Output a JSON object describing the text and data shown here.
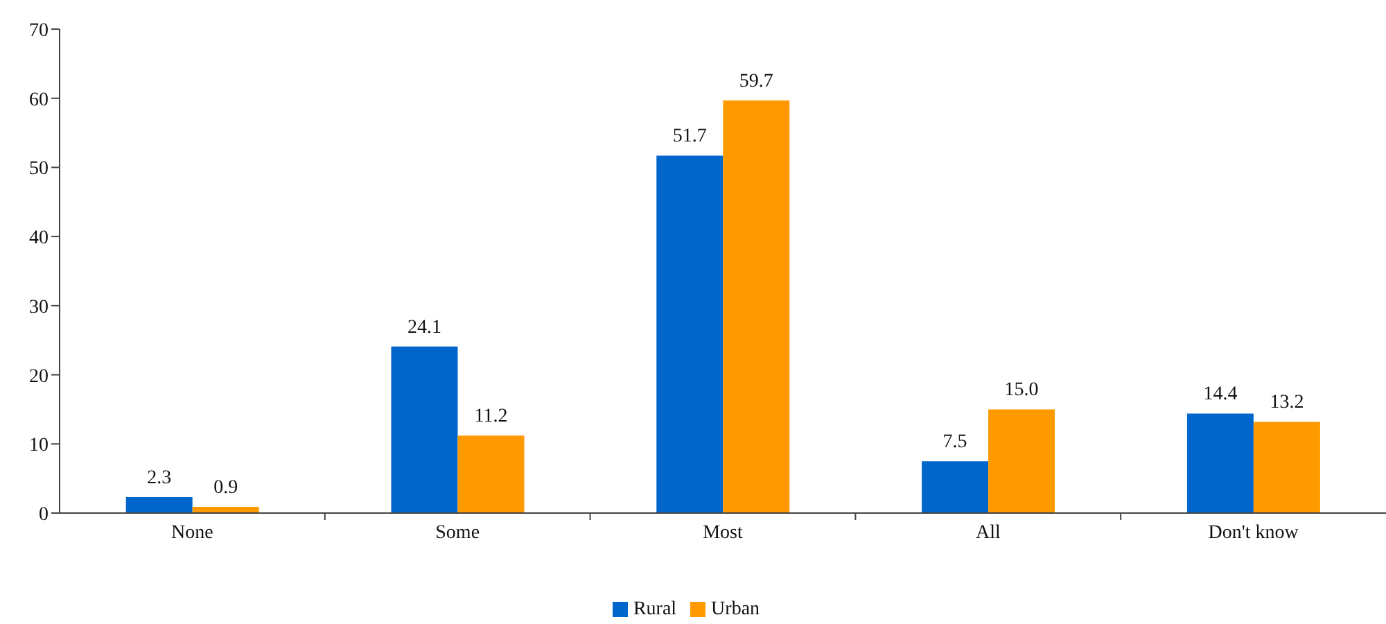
{
  "chart_data": {
    "type": "bar",
    "categories": [
      "None",
      "Some",
      "Most",
      "All",
      "Don't know"
    ],
    "series": [
      {
        "name": "Rural",
        "color": "#0066cc",
        "values": [
          2.3,
          24.1,
          51.7,
          7.5,
          14.4
        ],
        "value_labels": [
          "2.3",
          "24.1",
          "51.7",
          "7.5",
          "14.4"
        ]
      },
      {
        "name": "Urban",
        "color": "#ff9900",
        "values": [
          0.9,
          11.2,
          59.7,
          15.0,
          13.2
        ],
        "value_labels": [
          "0.9",
          "11.2",
          "59.7",
          "15.0",
          "13.2"
        ]
      }
    ],
    "ylim": [
      0,
      70
    ],
    "yticks": [
      0,
      10,
      20,
      30,
      40,
      50,
      60,
      70
    ],
    "legend": "bottom"
  }
}
